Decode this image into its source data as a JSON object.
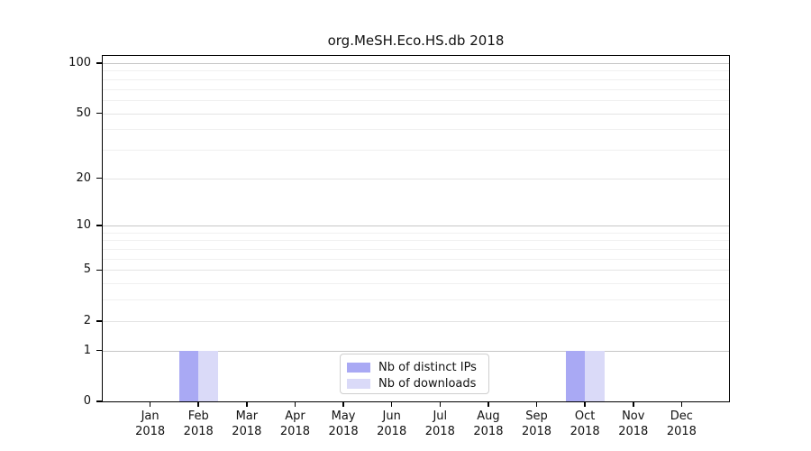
{
  "chart_data": {
    "type": "bar",
    "title": "org.MeSH.Eco.HS.db 2018",
    "year": "2018",
    "categories": [
      "Jan 2018",
      "Feb 2018",
      "Mar 2018",
      "Apr 2018",
      "May 2018",
      "Jun 2018",
      "Jul 2018",
      "Aug 2018",
      "Sep 2018",
      "Oct 2018",
      "Nov 2018",
      "Dec 2018"
    ],
    "series": [
      {
        "name": "Nb of distinct IPs",
        "color": "#a9a9f4",
        "values": [
          0,
          1,
          0,
          0,
          0,
          0,
          0,
          0,
          0,
          1,
          0,
          0
        ]
      },
      {
        "name": "Nb of downloads",
        "color": "#dadaf8",
        "values": [
          0,
          1,
          0,
          0,
          0,
          0,
          0,
          0,
          0,
          1,
          0,
          0
        ]
      }
    ],
    "yscale": "log10(value+1)",
    "ylim": [
      0,
      112
    ],
    "y_major_ticks": [
      0,
      1,
      2,
      5,
      10,
      20,
      50,
      100
    ],
    "y_minor_gridlines": [
      3,
      4,
      6,
      7,
      8,
      9,
      30,
      40,
      60,
      70,
      80,
      90
    ],
    "grid": "on",
    "legend_position": "bottom-center",
    "colors": {
      "axis": "#000000",
      "grid_power_of_ten": "#c6c6c6",
      "grid_major": "#e4e4e4",
      "grid_minor": "#f0f0f0",
      "text": "#111111",
      "legend_border": "#cfcfcf"
    }
  }
}
